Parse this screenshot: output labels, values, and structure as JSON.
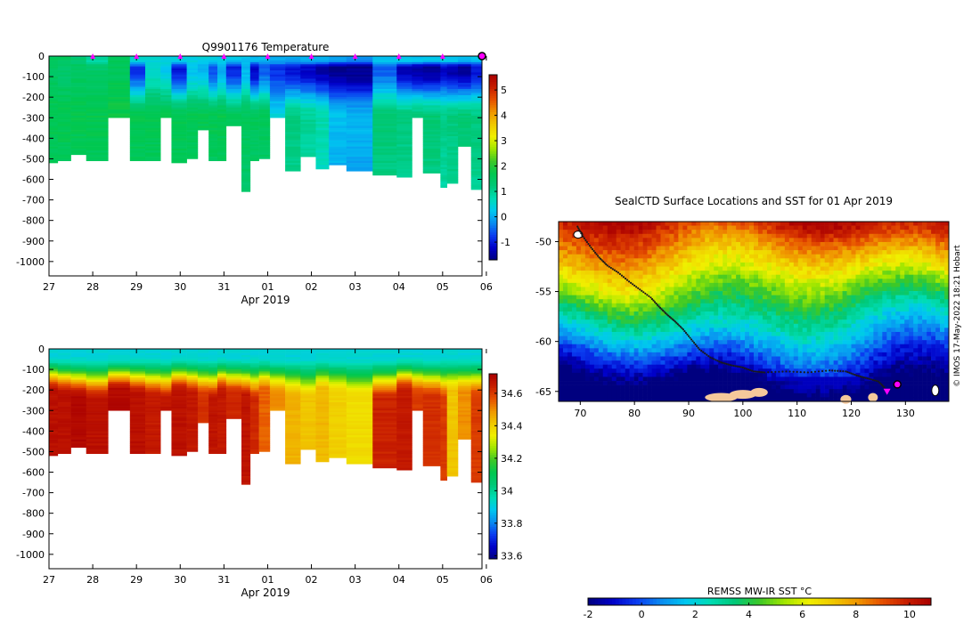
{
  "colors": {
    "temp_ramp": [
      "#00007f",
      "#0000c8",
      "#0a3cf0",
      "#0a8cf0",
      "#00c8f0",
      "#00dcb4",
      "#00c878",
      "#00c850",
      "#3cc828",
      "#a0e600",
      "#f0f000",
      "#f0c800",
      "#f09600",
      "#e65000",
      "#c81e00",
      "#aa0000"
    ],
    "sst_ramp": [
      "#00007f",
      "#0000c8",
      "#0a3cf0",
      "#0a8cf0",
      "#00c8f0",
      "#00dcb4",
      "#00c878",
      "#3cc828",
      "#a0e600",
      "#f0f000",
      "#f0c800",
      "#f09600",
      "#e65000",
      "#c81e00",
      "#aa0000"
    ],
    "land": "#f5c89b",
    "track": "#1a1a1a",
    "marker": "#ff00ff"
  },
  "chart_data": [
    {
      "id": "temperature",
      "type": "heatmap",
      "title": "Q9901176  Temperature",
      "xlabel": "Apr 2019",
      "ylabel": "",
      "x_ticks": [
        "27",
        "28",
        "29",
        "30",
        "31",
        "01",
        "02",
        "03",
        "04",
        "05",
        "06"
      ],
      "x_range": [
        0,
        9.9
      ],
      "y_ticks": [
        "0",
        "-100",
        "-200",
        "-300",
        "-400",
        "-500",
        "-600",
        "-700",
        "-800",
        "-900",
        "-1000"
      ],
      "y_range": [
        -1070,
        0
      ],
      "profile_marker_days": [
        1,
        2,
        3,
        4,
        5,
        6,
        7,
        8,
        9
      ],
      "colorbar_ticks": [
        "-1",
        "0",
        "1",
        "2",
        "3",
        "4",
        "5"
      ],
      "colorbar_range": [
        -1.7,
        5.6
      ],
      "profiles": [
        {
          "t0": 0.0,
          "t1": 0.2,
          "depth": 520,
          "top": 1.6,
          "mix": 1.5,
          "deep": 1.7
        },
        {
          "t0": 0.2,
          "t1": 0.5,
          "depth": 505,
          "top": 1.5,
          "mix": 1.4,
          "deep": 1.7
        },
        {
          "t0": 0.5,
          "t1": 0.85,
          "depth": 480,
          "top": 1.3,
          "mix": 1.5,
          "deep": 1.7
        },
        {
          "t0": 0.85,
          "t1": 1.35,
          "depth": 505,
          "top": 0.9,
          "mix": 1.4,
          "deep": 1.7
        },
        {
          "t0": 1.35,
          "t1": 1.85,
          "depth": 300,
          "top": 1.6,
          "mix": 1.6,
          "deep": 1.8
        },
        {
          "t0": 1.85,
          "t1": 2.2,
          "depth": 505,
          "top": 0.6,
          "mix": -0.8,
          "deep": 1.7
        },
        {
          "t0": 2.2,
          "t1": 2.55,
          "depth": 510,
          "top": 0.5,
          "mix": 0.6,
          "deep": 1.7
        },
        {
          "t0": 2.55,
          "t1": 2.8,
          "depth": 300,
          "top": 0.4,
          "mix": 0.3,
          "deep": 1.7
        },
        {
          "t0": 2.8,
          "t1": 3.15,
          "depth": 515,
          "top": 0.4,
          "mix": -1.0,
          "deep": 1.7
        },
        {
          "t0": 3.15,
          "t1": 3.4,
          "depth": 500,
          "top": 0.4,
          "mix": 0.2,
          "deep": 1.7
        },
        {
          "t0": 3.4,
          "t1": 3.65,
          "depth": 360,
          "top": 0.4,
          "mix": 0.1,
          "deep": 1.7
        },
        {
          "t0": 3.65,
          "t1": 3.85,
          "depth": 505,
          "top": 0.3,
          "mix": -0.6,
          "deep": 1.7
        },
        {
          "t0": 3.85,
          "t1": 4.05,
          "depth": 510,
          "top": 0.3,
          "mix": 0.0,
          "deep": 1.7
        },
        {
          "t0": 4.05,
          "t1": 4.4,
          "depth": 340,
          "top": 0.2,
          "mix": -0.9,
          "deep": 1.6
        },
        {
          "t0": 4.4,
          "t1": 4.6,
          "depth": 655,
          "top": 0.2,
          "mix": 0.1,
          "deep": 1.6
        },
        {
          "t0": 4.6,
          "t1": 4.8,
          "depth": 510,
          "top": 0.1,
          "mix": -1.2,
          "deep": 1.6
        },
        {
          "t0": 4.8,
          "t1": 5.05,
          "depth": 500,
          "top": 0.1,
          "mix": -0.5,
          "deep": 1.6
        },
        {
          "t0": 5.05,
          "t1": 5.4,
          "depth": 300,
          "top": 0.0,
          "mix": -0.8,
          "deep": 0.4
        },
        {
          "t0": 5.4,
          "t1": 5.75,
          "depth": 555,
          "top": 0.0,
          "mix": -1.1,
          "deep": 1.2
        },
        {
          "t0": 5.75,
          "t1": 6.1,
          "depth": 490,
          "top": 0.1,
          "mix": -1.2,
          "deep": 1.0
        },
        {
          "t0": 6.1,
          "t1": 6.4,
          "depth": 545,
          "top": 0.0,
          "mix": -1.4,
          "deep": 0.8
        },
        {
          "t0": 6.4,
          "t1": 6.8,
          "depth": 525,
          "top": -0.1,
          "mix": -1.6,
          "deep": 0.2
        },
        {
          "t0": 6.8,
          "t1": 7.4,
          "depth": 555,
          "top": -0.2,
          "mix": -1.6,
          "deep": 0.1
        },
        {
          "t0": 7.4,
          "t1": 7.95,
          "depth": 580,
          "top": 0.2,
          "mix": -0.5,
          "deep": 1.3
        },
        {
          "t0": 7.95,
          "t1": 8.3,
          "depth": 590,
          "top": 0.3,
          "mix": -1.3,
          "deep": 1.2
        },
        {
          "t0": 8.3,
          "t1": 8.55,
          "depth": 300,
          "top": 0.2,
          "mix": -1.4,
          "deep": 1.3
        },
        {
          "t0": 8.55,
          "t1": 8.95,
          "depth": 570,
          "top": 0.2,
          "mix": -1.5,
          "deep": 1.3
        },
        {
          "t0": 8.95,
          "t1": 9.1,
          "depth": 635,
          "top": 0.3,
          "mix": -1.2,
          "deep": 1.1
        },
        {
          "t0": 9.1,
          "t1": 9.35,
          "depth": 620,
          "top": 0.3,
          "mix": -1.4,
          "deep": 1.2
        },
        {
          "t0": 9.35,
          "t1": 9.65,
          "depth": 440,
          "top": 0.2,
          "mix": -1.5,
          "deep": 1.3
        },
        {
          "t0": 9.65,
          "t1": 9.9,
          "depth": 645,
          "top": 0.2,
          "mix": -1.1,
          "deep": 1.2
        }
      ]
    },
    {
      "id": "salinity",
      "type": "heatmap",
      "title": "",
      "xlabel": "Apr 2019",
      "ylabel": "",
      "x_ticks": [
        "27",
        "28",
        "29",
        "30",
        "31",
        "01",
        "02",
        "03",
        "04",
        "05",
        "06"
      ],
      "x_range": [
        0,
        9.9
      ],
      "y_ticks": [
        "0",
        "-100",
        "-200",
        "-300",
        "-400",
        "-500",
        "-600",
        "-700",
        "-800",
        "-900",
        "-1000"
      ],
      "y_range": [
        -1070,
        0
      ],
      "colorbar_ticks": [
        "33.6",
        "33.8",
        "34",
        "34.2",
        "34.4",
        "34.6"
      ],
      "colorbar_range": [
        33.58,
        34.72
      ],
      "surface_value": 33.92,
      "halocline_center": 140,
      "deep_values": [
        34.68,
        34.68,
        34.7,
        34.68,
        34.7,
        34.68,
        34.66,
        34.67,
        34.68,
        34.66,
        34.62,
        34.67,
        34.66,
        34.63,
        34.67,
        34.63,
        34.55,
        34.5,
        34.45,
        34.42,
        34.44,
        34.4,
        34.38,
        34.64,
        34.66,
        34.6,
        34.62,
        34.6,
        34.42,
        34.5,
        34.6
      ]
    },
    {
      "id": "sst-map",
      "type": "heatmap",
      "title": "SealCTD Surface Locations and SST for 01 Apr 2019",
      "xlabel": "",
      "ylabel": "",
      "lon_range": [
        66,
        138
      ],
      "lat_range": [
        -66,
        -48
      ],
      "lon_ticks": [
        "70",
        "80",
        "90",
        "100",
        "110",
        "120",
        "130"
      ],
      "lat_ticks": [
        "-50",
        "-55",
        "-60",
        "-65"
      ],
      "colorbar_label": "REMSS MW-IR SST °C",
      "colorbar_ticks": [
        "-2",
        "0",
        "2",
        "4",
        "6",
        "8",
        "10"
      ],
      "colorbar_range": [
        -2,
        10.8
      ],
      "track": [
        [
          69.5,
          -48.5
        ],
        [
          70.5,
          -49.5
        ],
        [
          72,
          -50.6
        ],
        [
          73.5,
          -51.6
        ],
        [
          75,
          -52.4
        ],
        [
          77,
          -53.1
        ],
        [
          79,
          -54.0
        ],
        [
          81,
          -54.8
        ],
        [
          83,
          -55.6
        ],
        [
          84.5,
          -56.5
        ],
        [
          86,
          -57.3
        ],
        [
          87.5,
          -58.0
        ],
        [
          89,
          -58.8
        ],
        [
          90.5,
          -59.8
        ],
        [
          92,
          -60.8
        ],
        [
          94,
          -61.6
        ],
        [
          96,
          -62.1
        ],
        [
          98,
          -62.4
        ],
        [
          100,
          -62.6
        ],
        [
          102,
          -63.0
        ],
        [
          104,
          -63.1
        ],
        [
          108,
          -63.0
        ],
        [
          112,
          -63.1
        ],
        [
          116,
          -62.9
        ],
        [
          119,
          -63.0
        ],
        [
          121,
          -63.4
        ],
        [
          123,
          -63.7
        ],
        [
          125,
          -64.0
        ],
        [
          126.3,
          -64.7
        ]
      ],
      "marker": [
        126.6,
        -65.0
      ],
      "final_position": [
        128.5,
        -64.3
      ],
      "credit": "© IMOS 17-May-2022 18:21 Hobart"
    }
  ]
}
